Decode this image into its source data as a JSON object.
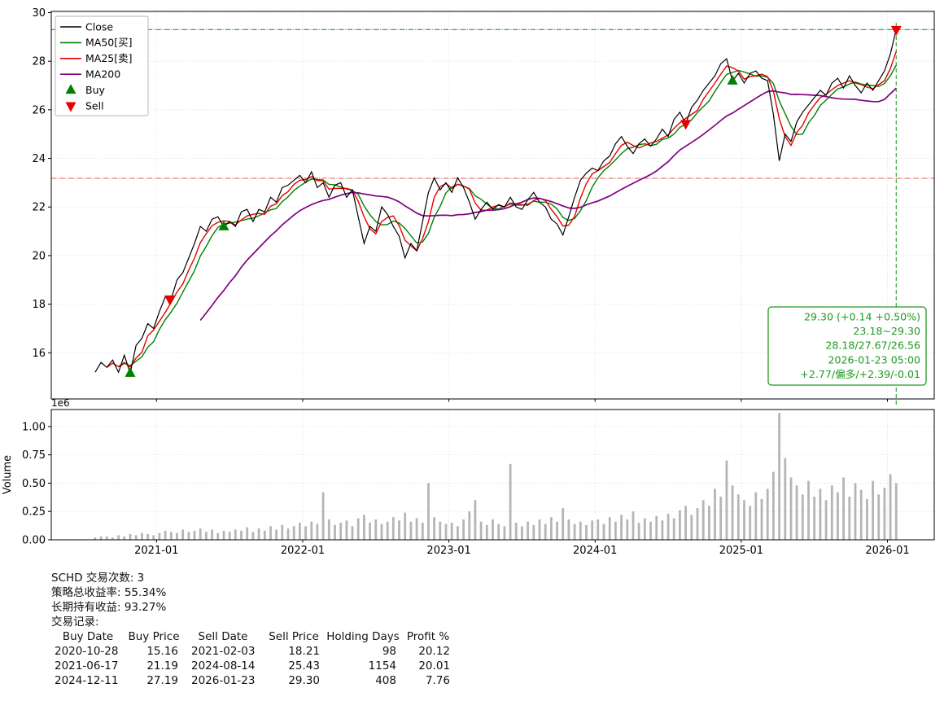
{
  "chart_data": {
    "type": "line",
    "title": "",
    "x_axis": {
      "range": [
        2020.28,
        2026.32
      ],
      "ticks": [
        2021,
        2022,
        2023,
        2024,
        2025,
        2026
      ],
      "tick_labels": [
        "2021-01",
        "2022-01",
        "2023-01",
        "2024-01",
        "2025-01",
        "2026-01"
      ]
    },
    "price_axis": {
      "range": [
        14.1,
        30.05
      ],
      "ticks": [
        16,
        18,
        20,
        22,
        24,
        26,
        28,
        30
      ]
    },
    "volume_axis": {
      "ylabel": "Volume",
      "offset_label": "1e6",
      "unit": "1e6",
      "range": [
        0,
        1.15
      ],
      "ticks": [
        0,
        0.25,
        0.5,
        0.75,
        1.0
      ],
      "tick_labels": [
        "0.00",
        "0.25",
        "0.50",
        "0.75",
        "1.00"
      ]
    },
    "close": {
      "name": "Close",
      "color": "#000000",
      "x_start": 2020.58,
      "x_step": 0.04,
      "values": [
        15.2,
        15.6,
        15.4,
        15.7,
        15.2,
        15.9,
        15.16,
        16.3,
        16.6,
        17.2,
        17.0,
        17.7,
        18.3,
        18.2,
        19.0,
        19.3,
        19.9,
        20.5,
        21.2,
        21.0,
        21.5,
        21.6,
        21.19,
        21.4,
        21.2,
        21.8,
        21.9,
        21.4,
        21.9,
        21.8,
        22.4,
        22.2,
        22.8,
        22.9,
        23.1,
        23.3,
        23.0,
        23.45,
        22.8,
        23.0,
        22.4,
        22.9,
        23.0,
        22.4,
        22.7,
        21.6,
        20.5,
        21.2,
        21.0,
        22.0,
        21.7,
        21.2,
        20.8,
        19.9,
        20.5,
        20.2,
        21.4,
        22.6,
        23.2,
        22.7,
        23.0,
        22.6,
        23.2,
        22.8,
        22.2,
        21.5,
        21.9,
        22.2,
        21.9,
        22.1,
        22.0,
        22.4,
        22.0,
        21.9,
        22.3,
        22.6,
        22.2,
        22.0,
        21.5,
        21.3,
        20.85,
        21.6,
        22.4,
        23.1,
        23.4,
        23.6,
        23.5,
        23.9,
        24.1,
        24.6,
        24.9,
        24.5,
        24.2,
        24.6,
        24.8,
        24.5,
        24.8,
        25.2,
        24.9,
        25.6,
        25.9,
        25.43,
        26.1,
        26.4,
        26.8,
        27.1,
        27.4,
        27.9,
        28.1,
        27.19,
        27.5,
        27.1,
        27.5,
        27.6,
        27.3,
        27.2,
        25.8,
        23.9,
        25.0,
        24.7,
        25.5,
        25.9,
        26.2,
        26.5,
        26.8,
        26.6,
        27.1,
        27.3,
        26.9,
        27.4,
        27.0,
        26.7,
        27.1,
        26.8,
        27.2,
        27.6,
        28.3,
        29.3
      ]
    },
    "ma_series": [
      {
        "id": "ma50",
        "name": "MA50[买]",
        "color": "#008000",
        "window": 5,
        "width": 1.4
      },
      {
        "id": "ma25",
        "name": "MA25[卖]",
        "color": "#e60000",
        "window": 3,
        "width": 1.4
      },
      {
        "id": "ma200",
        "name": "MA200",
        "color": "#800080",
        "window": 19,
        "width": 1.7
      }
    ],
    "volume": {
      "color": "#b5b5b5",
      "values": [
        0.02,
        0.03,
        0.03,
        0.02,
        0.04,
        0.03,
        0.05,
        0.04,
        0.06,
        0.05,
        0.04,
        0.06,
        0.08,
        0.07,
        0.06,
        0.09,
        0.07,
        0.08,
        0.1,
        0.07,
        0.09,
        0.06,
        0.08,
        0.07,
        0.09,
        0.08,
        0.11,
        0.07,
        0.1,
        0.08,
        0.12,
        0.09,
        0.13,
        0.1,
        0.12,
        0.15,
        0.12,
        0.16,
        0.14,
        0.42,
        0.18,
        0.13,
        0.15,
        0.17,
        0.12,
        0.19,
        0.22,
        0.15,
        0.18,
        0.14,
        0.16,
        0.2,
        0.17,
        0.24,
        0.16,
        0.19,
        0.15,
        0.5,
        0.2,
        0.16,
        0.14,
        0.15,
        0.12,
        0.18,
        0.25,
        0.35,
        0.16,
        0.13,
        0.18,
        0.14,
        0.12,
        0.67,
        0.15,
        0.12,
        0.16,
        0.13,
        0.18,
        0.14,
        0.2,
        0.16,
        0.28,
        0.18,
        0.14,
        0.16,
        0.13,
        0.17,
        0.18,
        0.14,
        0.2,
        0.16,
        0.22,
        0.18,
        0.25,
        0.15,
        0.19,
        0.16,
        0.21,
        0.17,
        0.23,
        0.19,
        0.26,
        0.3,
        0.22,
        0.28,
        0.35,
        0.3,
        0.45,
        0.38,
        0.7,
        0.48,
        0.4,
        0.35,
        0.3,
        0.42,
        0.36,
        0.45,
        0.6,
        1.12,
        0.72,
        0.55,
        0.48,
        0.4,
        0.52,
        0.38,
        0.45,
        0.35,
        0.48,
        0.42,
        0.55,
        0.38,
        0.5,
        0.44,
        0.36,
        0.52,
        0.4,
        0.46,
        0.58,
        0.5
      ]
    },
    "markers": {
      "buy": {
        "label": "Buy",
        "color": "#008000",
        "points": [
          [
            2020.82,
            15.16
          ],
          [
            2021.46,
            21.19
          ],
          [
            2024.94,
            27.19
          ]
        ]
      },
      "sell": {
        "label": "Sell",
        "color": "#e60000",
        "points": [
          [
            2021.09,
            18.21
          ],
          [
            2024.62,
            25.43
          ],
          [
            2026.06,
            29.3
          ]
        ]
      }
    },
    "hlines": [
      {
        "y": 29.3,
        "color": "#3aa83a"
      },
      {
        "y": 23.18,
        "color": "#ea7a7a"
      }
    ],
    "vline": {
      "x": 2026.06,
      "color": "#3aa83a"
    },
    "info_box": {
      "color": "#1f9a1f",
      "lines": [
        "29.30 (+0.14 +0.50%)",
        "23.18~29.30",
        "28.18/27.67/26.56",
        "2026-01-23 05:00",
        "+2.77/偏多/+2.39/-0.01"
      ]
    }
  },
  "stats": {
    "trade_count_line": "SCHD 交易次数: 3",
    "strategy_return_line": "策略总收益率: 55.34%",
    "hold_return_line": "长期持有收益: 93.27%",
    "records_label": "交易记录:",
    "table": {
      "headers": [
        "Buy Date",
        "Buy Price",
        "Sell Date",
        "Sell Price",
        "Holding Days",
        "Profit %"
      ],
      "rows": [
        [
          "2020-10-28",
          "15.16",
          "2021-02-03",
          "18.21",
          "98",
          "20.12"
        ],
        [
          "2021-06-17",
          "21.19",
          "2024-08-14",
          "25.43",
          "1154",
          "20.01"
        ],
        [
          "2024-12-11",
          "27.19",
          "2026-01-23",
          "29.30",
          "408",
          "7.76"
        ]
      ]
    }
  }
}
